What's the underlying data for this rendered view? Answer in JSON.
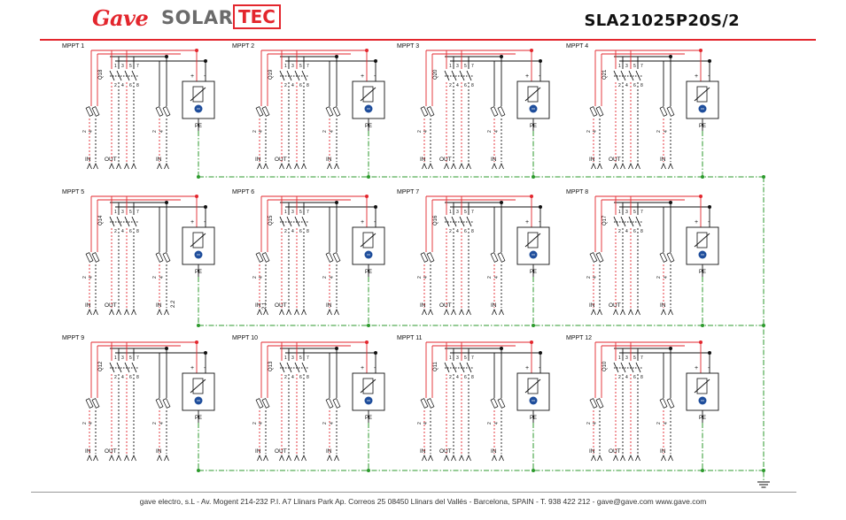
{
  "header": {
    "logo_primary": "Gave",
    "logo_secondary": "SOLAR",
    "logo_accent": "TEC",
    "document_code": "SLA21025P20S/2"
  },
  "labels": {
    "input": "IN",
    "output": "OUT",
    "protective_earth": "PE",
    "plus": "+",
    "minus": "-"
  },
  "fuse_numbers": [
    "2",
    "4",
    "2",
    "4"
  ],
  "switch_pole_numbers": [
    "1",
    "3",
    "5",
    "7",
    "2",
    "4",
    "6",
    "8"
  ],
  "special_terminal_labels": {
    "mppt5_right": "2.2",
    "mppt6_left": "2.1"
  },
  "mppts": [
    {
      "name": "MPPT 1",
      "switch": "Q18"
    },
    {
      "name": "MPPT 2",
      "switch": "Q19"
    },
    {
      "name": "MPPT 3",
      "switch": "Q20"
    },
    {
      "name": "MPPT 4",
      "switch": "Q21"
    },
    {
      "name": "MPPT 5",
      "switch": "Q14"
    },
    {
      "name": "MPPT 6",
      "switch": "Q15"
    },
    {
      "name": "MPPT 7",
      "switch": "Q16"
    },
    {
      "name": "MPPT 8",
      "switch": "Q17"
    },
    {
      "name": "MPPT 9",
      "switch": "Q12"
    },
    {
      "name": "MPPT 10",
      "switch": "Q13"
    },
    {
      "name": "MPPT 11",
      "switch": "Q11"
    },
    {
      "name": "MPPT 12",
      "switch": "Q10"
    }
  ],
  "colors": {
    "positive": "#e3262d",
    "negative": "#111111",
    "earth": "#2c9a2c",
    "brand": "#e3262d",
    "spd_symbol": "#1f4e9c"
  },
  "footer": {
    "address": "gave electro, s.L - Av. Mogent 214-232 P.I. A7 Llinars Park Ap. Correos 25 08450 Llinars del Vallés - Barcelona, SPAIN - T. 938 422 212 - gave@gave.com www.gave.com"
  }
}
